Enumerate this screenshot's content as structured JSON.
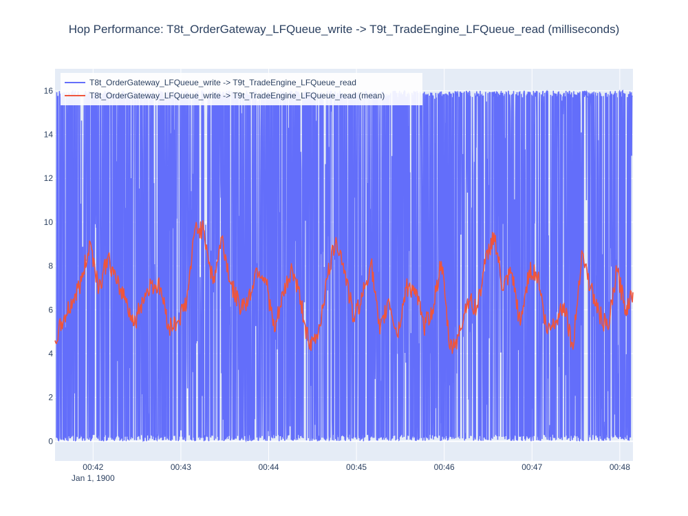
{
  "colors": {
    "background": "#ffffff",
    "plot_bg": "#e5ecf6",
    "grid": "#ffffff",
    "text": "#2a3f5f",
    "series_raw": "#636efa",
    "series_mean": "#ef553b"
  },
  "chart_data": {
    "type": "line",
    "title": "Hop Performance: T8t_OrderGateway_LFQueue_write -> T9t_TradeEngine_LFQueue_read (milliseconds)",
    "xlabel": "",
    "ylabel": "",
    "x_axis": {
      "type": "date",
      "range": [
        "1900-01-01 00:41:34",
        "1900-01-01 00:48:09"
      ],
      "tick_values": [
        "1900-01-01 00:42:00",
        "1900-01-01 00:43:00",
        "1900-01-01 00:44:00",
        "1900-01-01 00:45:00",
        "1900-01-01 00:46:00",
        "1900-01-01 00:47:00",
        "1900-01-01 00:48:00"
      ],
      "tick_labels": [
        "00:42",
        "00:43",
        "00:44",
        "00:45",
        "00:46",
        "00:47",
        "00:48"
      ],
      "date_label": "Jan 1, 1900"
    },
    "y_axis": {
      "range": [
        -0.9,
        17.0
      ],
      "tick_values": [
        0,
        2,
        4,
        6,
        8,
        10,
        12,
        14,
        16
      ],
      "tick_labels": [
        "0",
        "2",
        "4",
        "6",
        "8",
        "10",
        "12",
        "14",
        "16"
      ]
    },
    "grid": true,
    "legend": {
      "placement": "top-left"
    },
    "series": [
      {
        "name": "T8t_OrderGateway_LFQueue_write -> T9t_TradeEngine_LFQueue_read",
        "color": "#636efa",
        "description": "dense raw samples, ~1 per 0.2 s, values range 0 to 16",
        "y_min": 0,
        "y_max": 16
      },
      {
        "name": "T8t_OrderGateway_LFQueue_write -> T9t_TradeEngine_LFQueue_read (mean)",
        "color": "#ef553b",
        "x": [
          "00:41:34",
          "00:41:40",
          "00:41:46",
          "00:41:52",
          "00:41:58",
          "00:42:04",
          "00:42:10",
          "00:42:16",
          "00:42:22",
          "00:42:28",
          "00:42:34",
          "00:42:40",
          "00:42:46",
          "00:42:52",
          "00:42:58",
          "00:43:04",
          "00:43:10",
          "00:43:16",
          "00:43:22",
          "00:43:28",
          "00:43:34",
          "00:43:40",
          "00:43:46",
          "00:43:52",
          "00:43:58",
          "00:44:04",
          "00:44:10",
          "00:44:16",
          "00:44:22",
          "00:44:28",
          "00:44:34",
          "00:44:40",
          "00:44:46",
          "00:44:52",
          "00:44:58",
          "00:45:04",
          "00:45:10",
          "00:45:16",
          "00:45:22",
          "00:45:28",
          "00:45:34",
          "00:45:40",
          "00:45:46",
          "00:45:52",
          "00:45:58",
          "00:46:04",
          "00:46:10",
          "00:46:16",
          "00:46:22",
          "00:46:28",
          "00:46:34",
          "00:46:40",
          "00:46:46",
          "00:46:52",
          "00:46:58",
          "00:47:04",
          "00:47:10",
          "00:47:16",
          "00:47:22",
          "00:47:28",
          "00:47:34",
          "00:47:40",
          "00:47:46",
          "00:47:52",
          "00:47:58",
          "00:48:04",
          "00:48:09"
        ],
        "values": [
          4.6,
          5.6,
          6.4,
          7.3,
          9.1,
          7.0,
          8.4,
          7.2,
          6.6,
          5.3,
          6.5,
          7.2,
          7.0,
          5.2,
          5.5,
          6.4,
          9.8,
          9.6,
          7.2,
          9.3,
          7.2,
          6.2,
          6.4,
          7.9,
          7.4,
          5.0,
          6.7,
          7.9,
          6.4,
          4.2,
          5.0,
          7.4,
          9.3,
          7.8,
          5.6,
          6.6,
          8.2,
          4.9,
          6.5,
          4.8,
          7.0,
          7.0,
          5.2,
          6.0,
          8.2,
          4.2,
          4.8,
          6.5,
          6.0,
          8.1,
          9.5,
          6.9,
          7.7,
          5.3,
          7.8,
          7.6,
          5.0,
          5.5,
          6.3,
          4.2,
          8.7,
          7.0,
          5.8,
          5.1,
          7.8,
          6.0,
          6.8
        ]
      }
    ]
  }
}
